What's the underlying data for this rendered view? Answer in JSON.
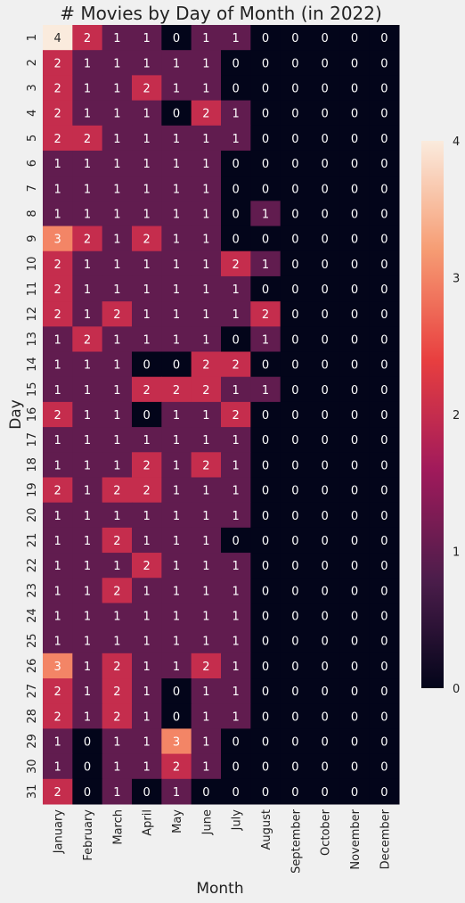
{
  "chart_data": {
    "type": "heatmap",
    "title": "# Movies by Day of Month (in 2022)",
    "xlabel": "Month",
    "ylabel": "Day",
    "x": [
      "January",
      "February",
      "March",
      "April",
      "May",
      "June",
      "July",
      "August",
      "September",
      "October",
      "November",
      "December"
    ],
    "y": [
      "1",
      "2",
      "3",
      "4",
      "5",
      "6",
      "7",
      "8",
      "9",
      "10",
      "11",
      "12",
      "13",
      "14",
      "15",
      "16",
      "17",
      "18",
      "19",
      "20",
      "21",
      "22",
      "23",
      "24",
      "25",
      "26",
      "27",
      "28",
      "29",
      "30",
      "31"
    ],
    "values": [
      [
        4,
        2,
        1,
        1,
        0,
        1,
        1,
        0,
        0,
        0,
        0,
        0
      ],
      [
        2,
        1,
        1,
        1,
        1,
        1,
        0,
        0,
        0,
        0,
        0,
        0
      ],
      [
        2,
        1,
        1,
        2,
        1,
        1,
        0,
        0,
        0,
        0,
        0,
        0
      ],
      [
        2,
        1,
        1,
        1,
        0,
        2,
        1,
        0,
        0,
        0,
        0,
        0
      ],
      [
        2,
        2,
        1,
        1,
        1,
        1,
        1,
        0,
        0,
        0,
        0,
        0
      ],
      [
        1,
        1,
        1,
        1,
        1,
        1,
        0,
        0,
        0,
        0,
        0,
        0
      ],
      [
        1,
        1,
        1,
        1,
        1,
        1,
        0,
        0,
        0,
        0,
        0,
        0
      ],
      [
        1,
        1,
        1,
        1,
        1,
        1,
        0,
        1,
        0,
        0,
        0,
        0
      ],
      [
        3,
        2,
        1,
        2,
        1,
        1,
        0,
        0,
        0,
        0,
        0,
        0
      ],
      [
        2,
        1,
        1,
        1,
        1,
        1,
        2,
        1,
        0,
        0,
        0,
        0
      ],
      [
        2,
        1,
        1,
        1,
        1,
        1,
        1,
        0,
        0,
        0,
        0,
        0
      ],
      [
        2,
        1,
        2,
        1,
        1,
        1,
        1,
        2,
        0,
        0,
        0,
        0
      ],
      [
        1,
        2,
        1,
        1,
        1,
        1,
        0,
        1,
        0,
        0,
        0,
        0
      ],
      [
        1,
        1,
        1,
        0,
        0,
        2,
        2,
        0,
        0,
        0,
        0,
        0
      ],
      [
        1,
        1,
        1,
        2,
        2,
        2,
        1,
        1,
        0,
        0,
        0,
        0
      ],
      [
        2,
        1,
        1,
        0,
        1,
        1,
        2,
        0,
        0,
        0,
        0,
        0
      ],
      [
        1,
        1,
        1,
        1,
        1,
        1,
        1,
        0,
        0,
        0,
        0,
        0
      ],
      [
        1,
        1,
        1,
        2,
        1,
        2,
        1,
        0,
        0,
        0,
        0,
        0
      ],
      [
        2,
        1,
        2,
        2,
        1,
        1,
        1,
        0,
        0,
        0,
        0,
        0
      ],
      [
        1,
        1,
        1,
        1,
        1,
        1,
        1,
        0,
        0,
        0,
        0,
        0
      ],
      [
        1,
        1,
        2,
        1,
        1,
        1,
        0,
        0,
        0,
        0,
        0,
        0
      ],
      [
        1,
        1,
        1,
        2,
        1,
        1,
        1,
        0,
        0,
        0,
        0,
        0
      ],
      [
        1,
        1,
        2,
        1,
        1,
        1,
        1,
        0,
        0,
        0,
        0,
        0
      ],
      [
        1,
        1,
        1,
        1,
        1,
        1,
        1,
        0,
        0,
        0,
        0,
        0
      ],
      [
        1,
        1,
        1,
        1,
        1,
        1,
        1,
        0,
        0,
        0,
        0,
        0
      ],
      [
        3,
        1,
        2,
        1,
        1,
        2,
        1,
        0,
        0,
        0,
        0,
        0
      ],
      [
        2,
        1,
        2,
        1,
        0,
        1,
        1,
        0,
        0,
        0,
        0,
        0
      ],
      [
        2,
        1,
        2,
        1,
        0,
        1,
        1,
        0,
        0,
        0,
        0,
        0
      ],
      [
        1,
        0,
        1,
        1,
        3,
        1,
        0,
        0,
        0,
        0,
        0,
        0
      ],
      [
        1,
        0,
        1,
        1,
        2,
        1,
        0,
        0,
        0,
        0,
        0,
        0
      ],
      [
        2,
        0,
        1,
        0,
        1,
        0,
        0,
        0,
        0,
        0,
        0,
        0
      ]
    ],
    "colorbar": {
      "min": 0,
      "max": 4,
      "ticks": [
        0,
        1,
        2,
        3,
        4
      ]
    },
    "colors": [
      "#03051a",
      "#4c1d4b",
      "#a11a5b",
      "#e83f3f",
      "#f69c73",
      "#faebdd"
    ],
    "background": "#f0f0f0"
  }
}
